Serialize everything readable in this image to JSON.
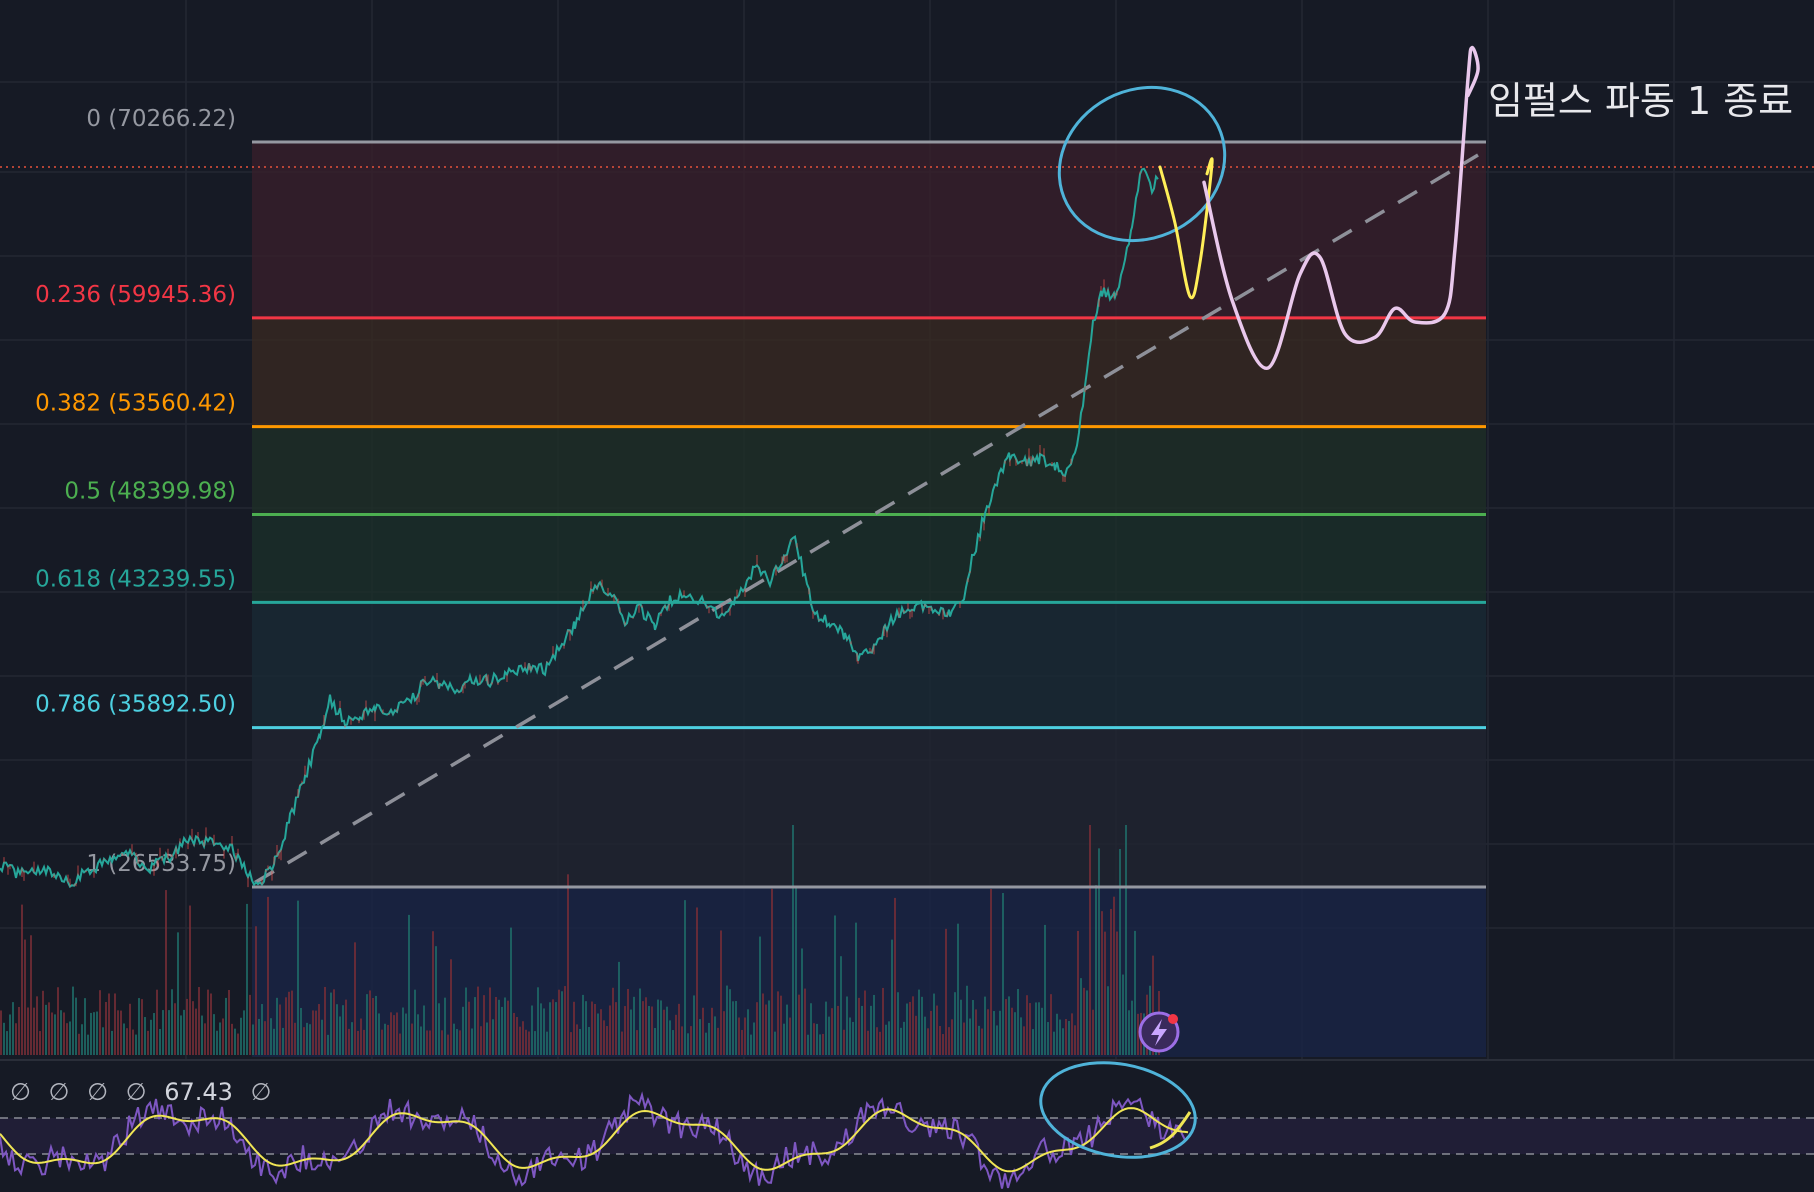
{
  "chart_data": {
    "type": "line",
    "title": "",
    "xlabel": "",
    "ylabel": "",
    "ylim": [
      22000,
      77000
    ],
    "grid": true,
    "fibonacci": [
      {
        "ratio": "0",
        "price": 70266.22,
        "label": "0 (70266.22)",
        "color": "#9598a1"
      },
      {
        "ratio": "0.236",
        "price": 59945.36,
        "label": "0.236 (59945.36)",
        "color": "#f23645"
      },
      {
        "ratio": "0.382",
        "price": 53560.42,
        "label": "0.382 (53560.42)",
        "color": "#ff9800"
      },
      {
        "ratio": "0.5",
        "price": 48399.98,
        "label": "0.5 (48399.98)",
        "color": "#4caf50"
      },
      {
        "ratio": "0.618",
        "price": 43239.55,
        "label": "0.618 (43239.55)",
        "color": "#26a69a"
      },
      {
        "ratio": "0.786",
        "price": 35892.5,
        "label": "0.786 (35892.50)",
        "color": "#4dd0e1"
      },
      {
        "ratio": "1",
        "price": 26533.75,
        "label": "1 (26533.75)",
        "color": "#9598a1"
      }
    ],
    "price_path": [
      [
        0,
        27800
      ],
      [
        20,
        27300
      ],
      [
        40,
        27600
      ],
      [
        60,
        27200
      ],
      [
        70,
        26700
      ],
      [
        90,
        27600
      ],
      [
        110,
        28000
      ],
      [
        130,
        28400
      ],
      [
        150,
        27700
      ],
      [
        170,
        28300
      ],
      [
        190,
        29400
      ],
      [
        210,
        29200
      ],
      [
        230,
        29000
      ],
      [
        250,
        27100
      ],
      [
        260,
        26600
      ],
      [
        275,
        28100
      ],
      [
        290,
        30500
      ],
      [
        305,
        33000
      ],
      [
        320,
        35500
      ],
      [
        330,
        37500
      ],
      [
        345,
        36300
      ],
      [
        360,
        36600
      ],
      [
        375,
        37000
      ],
      [
        395,
        37000
      ],
      [
        415,
        37700
      ],
      [
        425,
        38800
      ],
      [
        440,
        38300
      ],
      [
        455,
        38100
      ],
      [
        470,
        38700
      ],
      [
        490,
        38600
      ],
      [
        505,
        39000
      ],
      [
        525,
        39500
      ],
      [
        545,
        39300
      ],
      [
        560,
        40600
      ],
      [
        575,
        42000
      ],
      [
        585,
        43300
      ],
      [
        600,
        44300
      ],
      [
        612,
        43700
      ],
      [
        625,
        42100
      ],
      [
        640,
        42900
      ],
      [
        655,
        41900
      ],
      [
        670,
        43400
      ],
      [
        690,
        43700
      ],
      [
        705,
        43100
      ],
      [
        720,
        42400
      ],
      [
        735,
        43500
      ],
      [
        745,
        44000
      ],
      [
        755,
        45500
      ],
      [
        770,
        44500
      ],
      [
        785,
        46200
      ],
      [
        795,
        47000
      ],
      [
        805,
        44700
      ],
      [
        815,
        42500
      ],
      [
        830,
        42000
      ],
      [
        845,
        41300
      ],
      [
        858,
        40000
      ],
      [
        870,
        40400
      ],
      [
        885,
        41700
      ],
      [
        900,
        42700
      ],
      [
        915,
        43100
      ],
      [
        935,
        42900
      ],
      [
        950,
        42700
      ],
      [
        962,
        43000
      ],
      [
        972,
        45700
      ],
      [
        985,
        48500
      ],
      [
        997,
        50300
      ],
      [
        1010,
        51800
      ],
      [
        1025,
        51400
      ],
      [
        1040,
        51700
      ],
      [
        1055,
        51300
      ],
      [
        1065,
        51000
      ],
      [
        1075,
        51800
      ],
      [
        1085,
        55800
      ],
      [
        1093,
        59500
      ],
      [
        1102,
        61500
      ],
      [
        1115,
        61300
      ],
      [
        1123,
        62500
      ],
      [
        1132,
        65500
      ],
      [
        1142,
        68700
      ],
      [
        1152,
        67600
      ],
      [
        1160,
        68200
      ]
    ],
    "projection_yellow": [
      [
        1160,
        68800
      ],
      [
        1175,
        65500
      ],
      [
        1190,
        61200
      ],
      [
        1200,
        63200
      ],
      [
        1212,
        69000
      ],
      [
        1207,
        68400
      ]
    ],
    "projection_white": [
      [
        1204,
        67900
      ],
      [
        1232,
        61000
      ],
      [
        1268,
        57000
      ],
      [
        1300,
        62500
      ],
      [
        1320,
        63500
      ],
      [
        1345,
        59000
      ],
      [
        1375,
        58800
      ],
      [
        1395,
        60500
      ],
      [
        1415,
        59700
      ],
      [
        1445,
        60200
      ],
      [
        1455,
        64000
      ],
      [
        1468,
        74000
      ],
      [
        1472,
        75800
      ],
      [
        1478,
        74500
      ],
      [
        1468,
        73000
      ]
    ],
    "trendline": [
      [
        255,
        26800
      ],
      [
        1478,
        69500
      ]
    ],
    "current_price_line": 68800,
    "rsi_readout": [
      "∅",
      "∅",
      "∅",
      "∅",
      "67.43",
      "∅"
    ],
    "annotation": "임펄스 파동 1 종료",
    "colors": {
      "background": "#161a25",
      "fib_fill_top": "#3b1f2a",
      "rsi_line": "#f0e655",
      "rsi_signal": "#7e57c2",
      "annotation_circle": "#4fb3d9",
      "projection_yellow": "#ffee58",
      "projection_white": "#e9c8ec"
    }
  }
}
